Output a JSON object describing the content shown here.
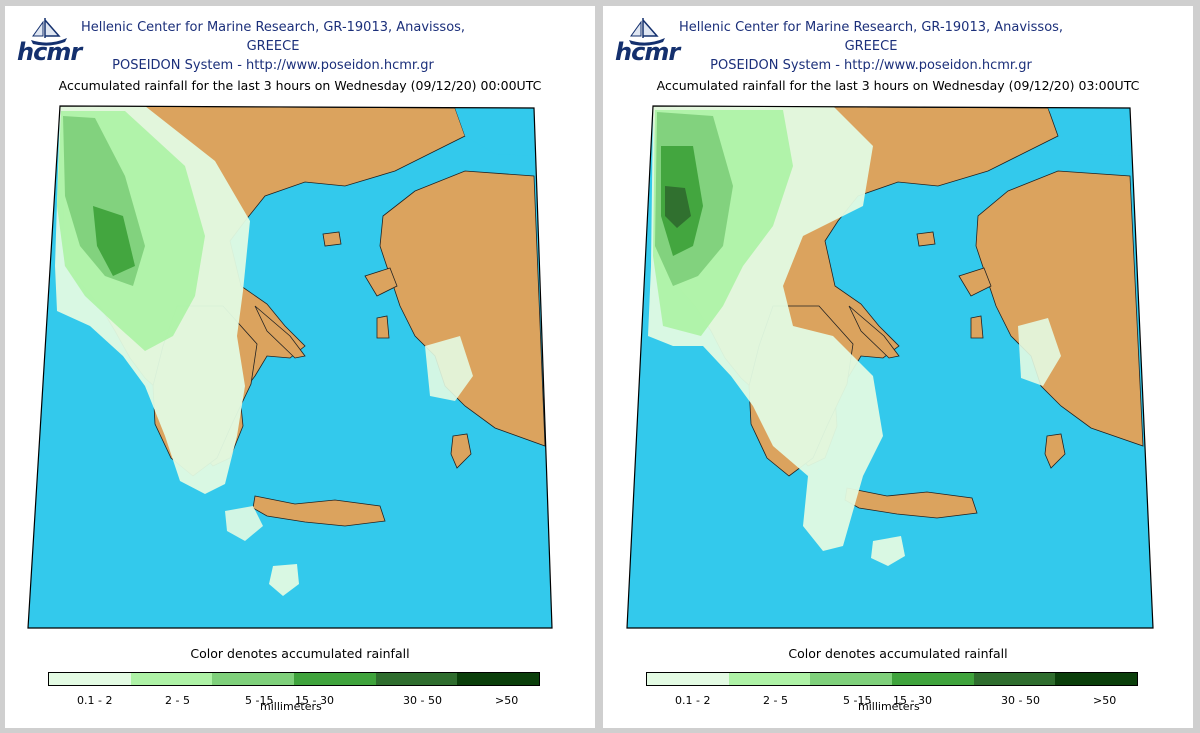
{
  "header": {
    "line1": "Hellenic Center for Marine Research, GR-19013, Anavissos, GREECE",
    "line2": "POSEIDON System - http://www.poseidon.hcmr.gr",
    "logo": "hcmr"
  },
  "colors": {
    "sea": "#33c9ec",
    "land": "#dba35e",
    "bins": [
      "#e3fbe3",
      "#aef2a6",
      "#7fd07b",
      "#3fa33c",
      "#2f6d2e",
      "#0b3f0b"
    ]
  },
  "panels": [
    {
      "title": "Accumulated rainfall for the last 3 hours on Wednesday (09/12/20) 00:00UTC"
    },
    {
      "title": "Accumulated rainfall for the last 3 hours on Wednesday (09/12/20) 03:00UTC"
    }
  ],
  "legend": {
    "caption": "Color denotes accumulated rainfall",
    "bins": [
      "0.1 - 2",
      "2 - 5",
      "5 -15",
      "15 - 30",
      "30 - 50",
      ">50"
    ],
    "units": "millimeters"
  }
}
